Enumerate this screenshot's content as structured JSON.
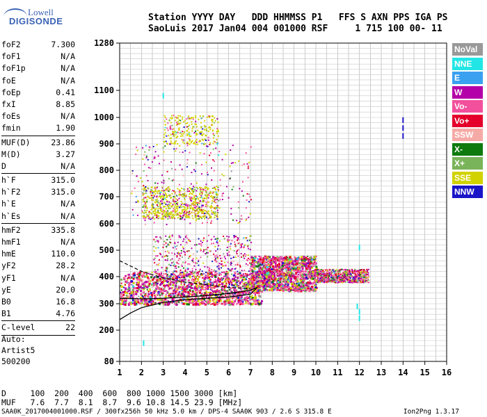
{
  "logo": {
    "line1": "Lowell",
    "line2": "DIGISONDE"
  },
  "header": {
    "line1": "Station YYYY DAY   DDD HHMMSS P1   FFS S AXN PPS IGA PS",
    "line2": "SaoLuis 2017 Jan04 004 001000 RSF     1 715 100 00- 11"
  },
  "params": [
    {
      "k": "foF2",
      "v": "7.300"
    },
    {
      "k": "foF1",
      "v": "N/A"
    },
    {
      "k": "foF1p",
      "v": "N/A"
    },
    {
      "k": "foE",
      "v": "N/A"
    },
    {
      "k": "foEp",
      "v": "0.41"
    },
    {
      "k": "fxI",
      "v": "8.85"
    },
    {
      "k": "foEs",
      "v": "N/A"
    },
    {
      "k": "fmin",
      "v": "1.90"
    },
    {
      "sep": true
    },
    {
      "k": "MUF(D)",
      "v": "23.86"
    },
    {
      "k": "M(D)",
      "v": "3.27"
    },
    {
      "k": "D",
      "v": "N/A"
    },
    {
      "sep": true
    },
    {
      "k": "h`F",
      "v": "315.0"
    },
    {
      "k": "h`F2",
      "v": "315.0"
    },
    {
      "k": "h`E",
      "v": "N/A"
    },
    {
      "k": "h`Es",
      "v": "N/A"
    },
    {
      "sep": true
    },
    {
      "k": "hmF2",
      "v": "335.8"
    },
    {
      "k": "hmF1",
      "v": "N/A"
    },
    {
      "k": "hmE",
      "v": "110.0"
    },
    {
      "k": "yF2",
      "v": "28.2"
    },
    {
      "k": "yF1",
      "v": "N/A"
    },
    {
      "k": "yE",
      "v": "20.0"
    },
    {
      "k": "B0",
      "v": "16.8"
    },
    {
      "k": "B1",
      "v": "4.76"
    },
    {
      "sep": true
    },
    {
      "k": "C-level",
      "v": "22"
    },
    {
      "sep": true
    }
  ],
  "auto": {
    "line1": "Auto:",
    "line2": "Artist5",
    "line3": "500200"
  },
  "bottom_table": {
    "line1": "D     100  200  400  600  800 1000 1500 3000 [km]",
    "line2": "MUF   7.6  7.7  8.1  8.7  9.6 10.8 14.5 23.9 [MHz]"
  },
  "footer": {
    "left": "SAA0K_2017004001000.RSF / 300fx256h 50 kHz 5.0 km / DPS-4 SAA0K 903 / 2.6 S 315.8 E",
    "right": "Ion2Png 1.3.17"
  },
  "legend": [
    {
      "label": "NoVal",
      "color": "#999999"
    },
    {
      "label": "NNE",
      "color": "#22e6e6"
    },
    {
      "label": "E",
      "color": "#3aa0f0"
    },
    {
      "label": "W",
      "color": "#b400a8"
    },
    {
      "label": "Vo-",
      "color": "#f2509c"
    },
    {
      "label": "Vo+",
      "color": "#e4002a"
    },
    {
      "label": "SSW",
      "color": "#f6aaa6"
    },
    {
      "label": "X-",
      "color": "#0e7a0e"
    },
    {
      "label": "X+",
      "color": "#7ab45a"
    },
    {
      "label": "SSE",
      "color": "#d2d200"
    },
    {
      "label": "NNW",
      "color": "#1a14c8"
    }
  ],
  "chart_data": {
    "type": "scatter",
    "x_ticks": [
      "1",
      "2",
      "3",
      "4",
      "5",
      "6",
      "7",
      "8",
      "9",
      "10",
      "11",
      "12",
      "13",
      "14",
      "15",
      "16"
    ],
    "y_ticks": [
      {
        "label": "1280",
        "v": 1280
      },
      {
        "label": "1100",
        "v": 1100
      },
      {
        "label": "1000",
        "v": 1000
      },
      {
        "label": "900",
        "v": 900
      },
      {
        "label": "800",
        "v": 800
      },
      {
        "label": "700",
        "v": 700
      },
      {
        "label": "600",
        "v": 600
      },
      {
        "label": "500",
        "v": 500
      },
      {
        "label": "400",
        "v": 400
      },
      {
        "label": "300",
        "v": 300
      },
      {
        "label": "200",
        "v": 200
      },
      {
        "label": "80",
        "v": 80
      }
    ],
    "xlim": [
      1,
      16
    ],
    "ylim": [
      80,
      1280
    ],
    "y_scale": "nonlinear (ionogram height scale)",
    "grid": true,
    "legend_position": "right",
    "echo_regions": [
      {
        "x": [
          1.0,
          7.5
        ],
        "y": [
          300,
          420
        ],
        "density": "dense",
        "mode": "F-trace"
      },
      {
        "x": [
          2.5,
          7.0
        ],
        "y": [
          330,
          560
        ],
        "density": "medium",
        "mode": "F-spread"
      },
      {
        "x": [
          7.0,
          10.0
        ],
        "y": [
          350,
          480
        ],
        "density": "dense",
        "mode": "spread-F"
      },
      {
        "x": [
          10.0,
          12.4
        ],
        "y": [
          380,
          430
        ],
        "density": "medium",
        "mode": "spread-F"
      },
      {
        "x": [
          1.5,
          7.0
        ],
        "y": [
          600,
          900
        ],
        "density": "sparse",
        "mode": "2F multiple"
      },
      {
        "x": [
          2.0,
          5.5
        ],
        "y": [
          620,
          740
        ],
        "density": "medium",
        "mode": "SSE 2F"
      },
      {
        "x": [
          3.0,
          5.5
        ],
        "y": [
          900,
          1010
        ],
        "density": "sparse",
        "mode": "SSE 3F"
      }
    ],
    "profile_curve": {
      "x": [
        1.0,
        1.5,
        2.0,
        3.0,
        4.0,
        5.0,
        6.0,
        7.0,
        7.3
      ],
      "y": [
        240,
        265,
        285,
        305,
        315,
        320,
        325,
        335,
        360
      ]
    },
    "dashed_curve": {
      "x": [
        1.0,
        2.0,
        3.0,
        4.0,
        5.0,
        6.0,
        7.0
      ],
      "y": [
        460,
        420,
        395,
        380,
        370,
        360,
        355
      ]
    },
    "trace_curve": {
      "x": [
        1.0,
        2.0,
        3.0,
        4.0,
        5.0,
        6.0,
        7.0,
        7.3
      ],
      "y": [
        320,
        318,
        320,
        325,
        330,
        338,
        350,
        360
      ]
    },
    "isolated_points": [
      {
        "x": 14.0,
        "y": 930
      },
      {
        "x": 14.0,
        "y": 960
      },
      {
        "x": 14.0,
        "y": 990
      },
      {
        "x": 12.0,
        "y": 510
      },
      {
        "x": 12.0,
        "y": 270
      },
      {
        "x": 12.0,
        "y": 245
      },
      {
        "x": 11.9,
        "y": 290
      },
      {
        "x": 3.0,
        "y": 1080
      },
      {
        "x": 2.1,
        "y": 150
      }
    ]
  }
}
